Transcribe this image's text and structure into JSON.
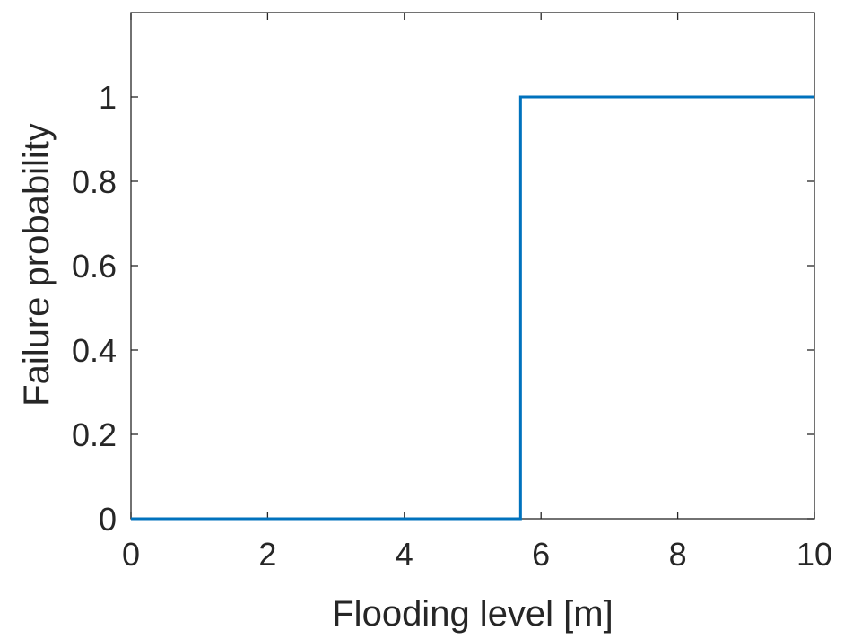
{
  "chart_data": {
    "type": "line",
    "title": "",
    "xlabel": "Flooding level [m]",
    "ylabel": "Failure probability",
    "xlim": [
      0,
      10
    ],
    "ylim": [
      0,
      1.2
    ],
    "x_ticks": [
      0,
      2,
      4,
      6,
      8,
      10
    ],
    "x_tick_labels": [
      "0",
      "2",
      "4",
      "6",
      "8",
      "10"
    ],
    "y_ticks": [
      0,
      0.2,
      0.4,
      0.6,
      0.8,
      1
    ],
    "y_tick_labels": [
      "0",
      "0.2",
      "0.4",
      "0.6",
      "0.8",
      "1"
    ],
    "grid": false,
    "box": true,
    "series": [
      {
        "color": "#0072BD",
        "x": [
          0,
          5.7,
          5.7,
          10
        ],
        "y": [
          0,
          0,
          1,
          1
        ]
      }
    ]
  }
}
